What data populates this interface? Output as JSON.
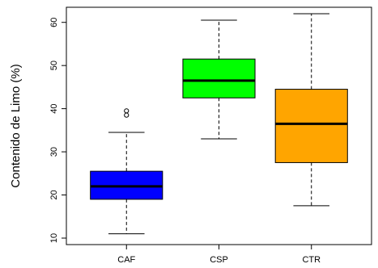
{
  "chart_data": {
    "type": "boxplot",
    "ylabel": "Contenido de Limo (%)",
    "ylim": [
      8.5,
      63.5
    ],
    "yticks": [
      10,
      20,
      30,
      40,
      50,
      60
    ],
    "categories": [
      "CAF",
      "CSP",
      "CTR"
    ],
    "boxes": [
      {
        "category": "CAF",
        "color": "#0000ff",
        "min": 11,
        "q1": 19,
        "median": 22,
        "q3": 25.5,
        "max": 34.5,
        "outliers": [
          38.5,
          39.5
        ]
      },
      {
        "category": "CSP",
        "color": "#00ff00",
        "min": 33,
        "q1": 42.5,
        "median": 46.5,
        "q3": 51.5,
        "max": 60.5,
        "outliers": []
      },
      {
        "category": "CTR",
        "color": "#ffa500",
        "min": 17.5,
        "q1": 27.5,
        "median": 36.5,
        "q3": 44.5,
        "max": 62,
        "outliers": []
      }
    ],
    "grid": false,
    "legend": "none"
  }
}
